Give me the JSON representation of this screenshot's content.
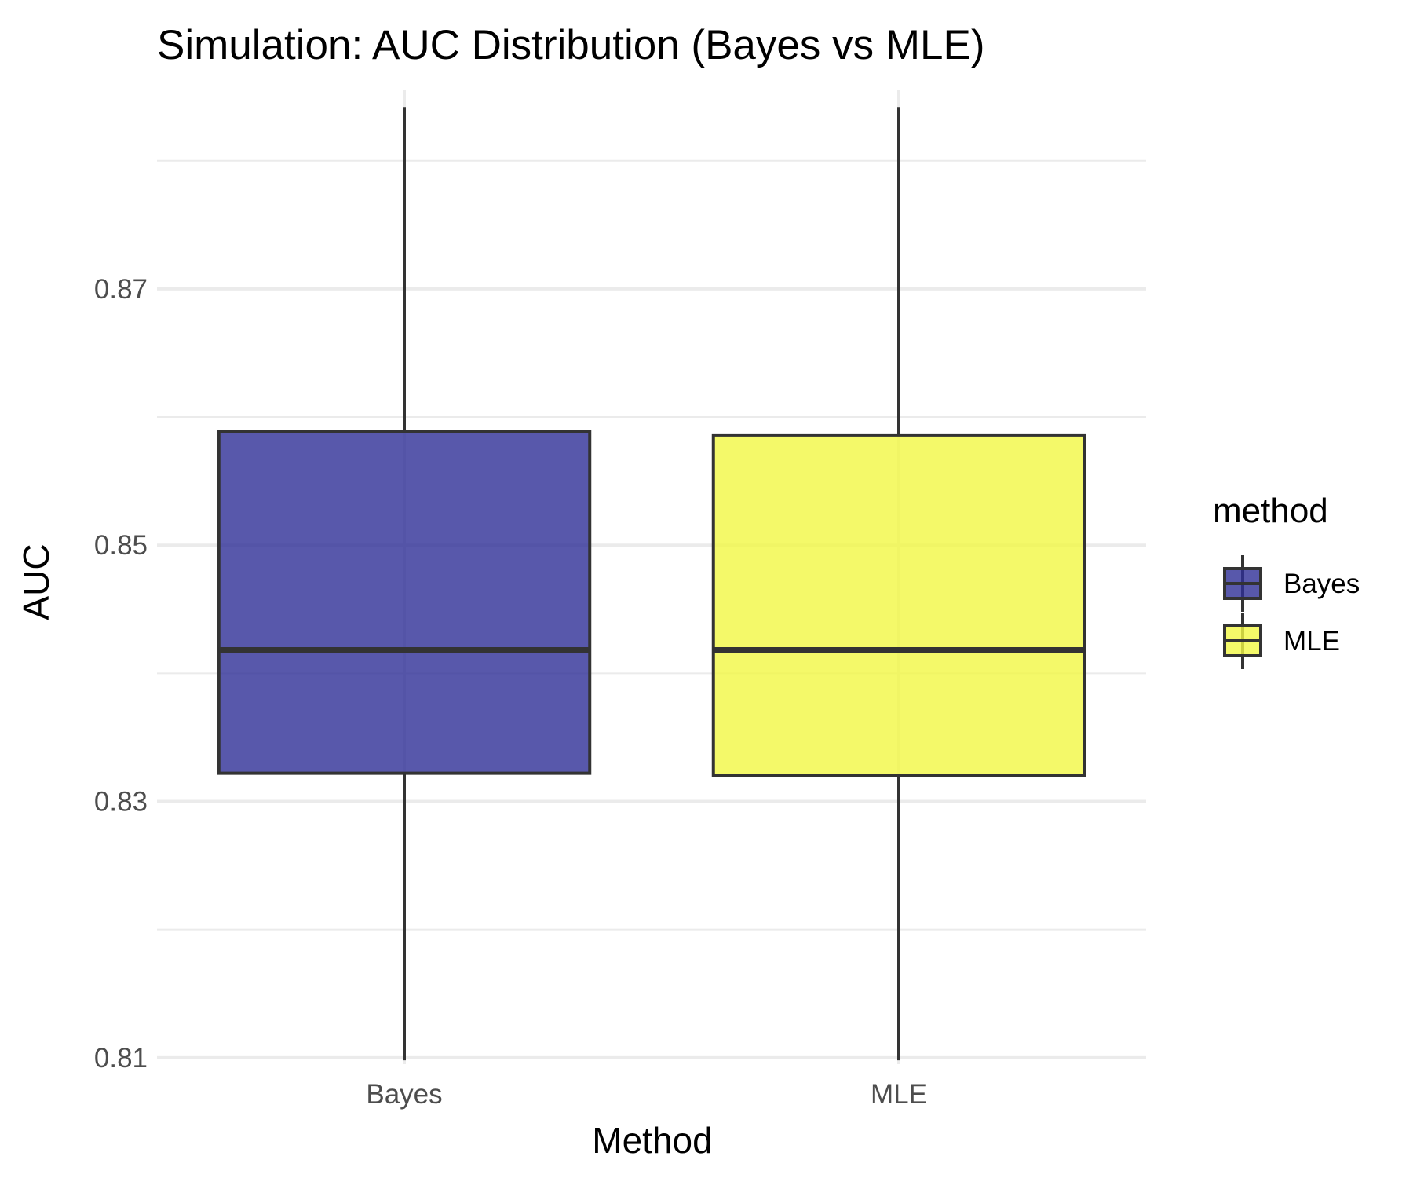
{
  "chart_data": {
    "type": "boxplot",
    "title": "Simulation: AUC Distribution (Bayes vs MLE)",
    "xlabel": "Method",
    "ylabel": "AUC",
    "ylim": [
      0.8095,
      0.8855
    ],
    "y_ticks": [
      0.81,
      0.83,
      0.85,
      0.87
    ],
    "y_tick_labels": [
      "0.81",
      "0.83",
      "0.85",
      "0.87"
    ],
    "y_minor_ticks": [
      0.82,
      0.84,
      0.86,
      0.88
    ],
    "categories": [
      "Bayes",
      "MLE"
    ],
    "grid": true,
    "legend": {
      "title": "method",
      "position": "right",
      "entries": [
        "Bayes",
        "MLE"
      ]
    },
    "series": [
      {
        "name": "Bayes",
        "color": "#2e2e96",
        "min": 0.8098,
        "q1": 0.8322,
        "median": 0.8418,
        "q3": 0.8589,
        "max": 0.8842
      },
      {
        "name": "MLE",
        "color": "#f1f843",
        "min": 0.8098,
        "q1": 0.832,
        "median": 0.8418,
        "q3": 0.8586,
        "max": 0.8842
      }
    ]
  }
}
